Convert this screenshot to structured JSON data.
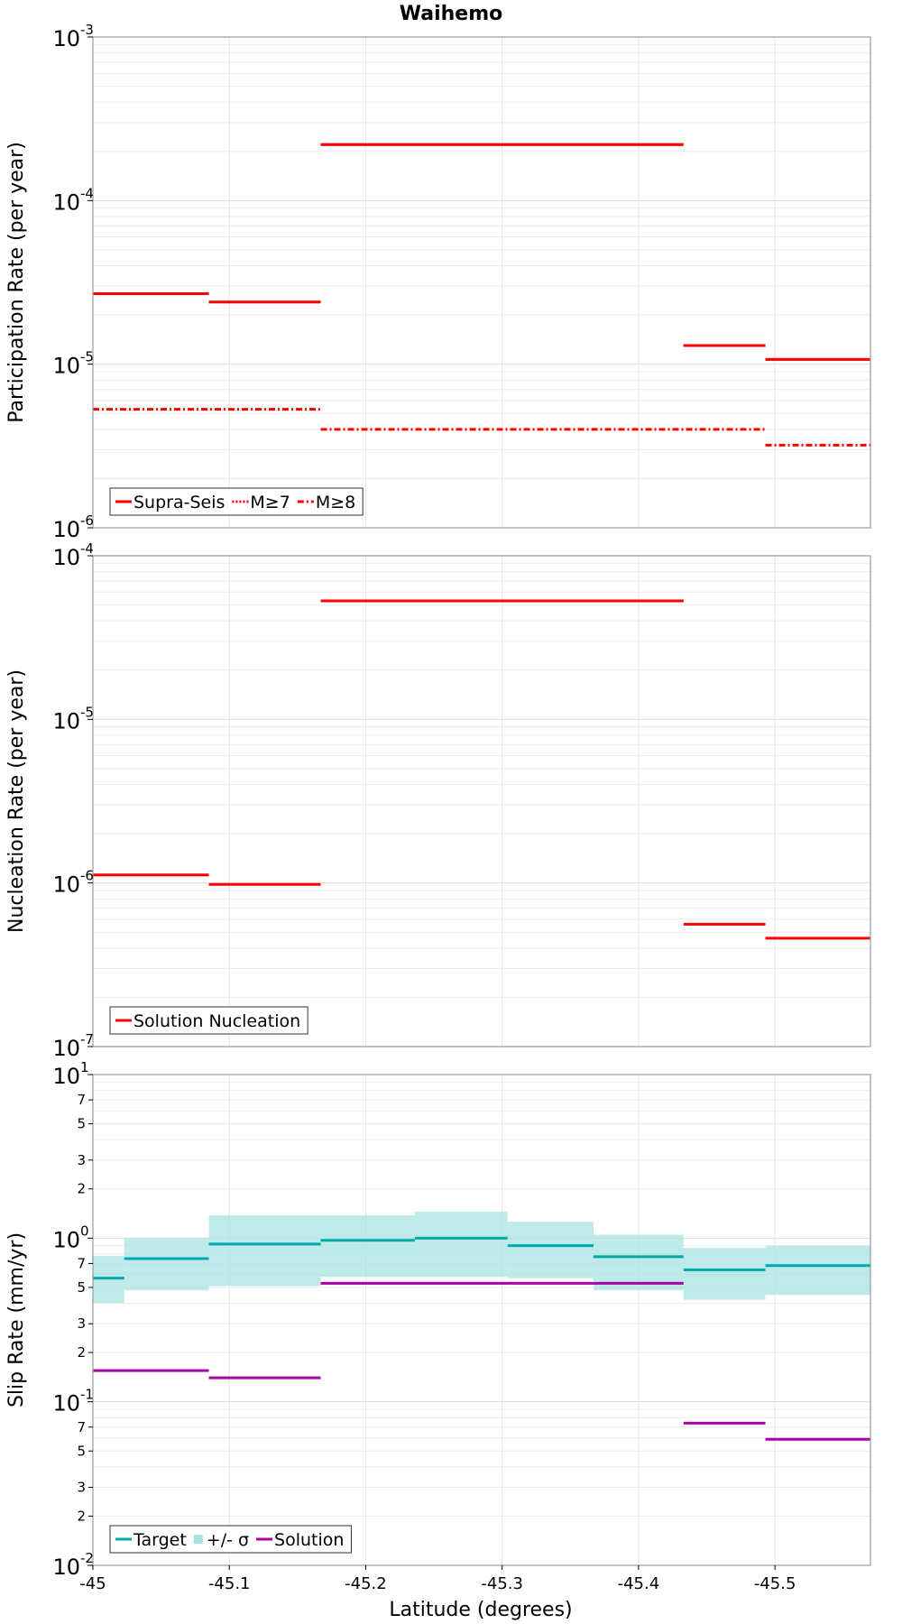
{
  "title": "Waihemo",
  "chart_data": [
    {
      "type": "line",
      "drawstyle": "steps",
      "ylabel": "Participation Rate (per year)",
      "xlabel": "",
      "yscale": "log",
      "ylim": [
        1e-06,
        0.001
      ],
      "xlim": [
        -45.0,
        -45.57
      ],
      "grid": true,
      "legend_position": "bottom-left",
      "series": [
        {
          "name": "Supra-Seis",
          "style": "solid",
          "color": "#ff0000",
          "segments": [
            [
              -45.0,
              -45.085,
              2.7e-05
            ],
            [
              -45.085,
              -45.167,
              2.4e-05
            ],
            [
              -45.167,
              -45.433,
              0.00022
            ],
            [
              -45.433,
              -45.493,
              1.3e-05
            ],
            [
              -45.493,
              -45.57,
              1.07e-05
            ]
          ]
        },
        {
          "name": "M≥7",
          "style": "dotted",
          "color": "#ff0000",
          "segments": [
            [
              -45.0,
              -45.085,
              2.7e-05
            ],
            [
              -45.085,
              -45.167,
              2.4e-05
            ],
            [
              -45.167,
              -45.433,
              0.00022
            ],
            [
              -45.433,
              -45.493,
              1.3e-05
            ],
            [
              -45.493,
              -45.57,
              1.07e-05
            ]
          ]
        },
        {
          "name": "M≥8",
          "style": "dashdot",
          "color": "#ff0000",
          "segments": [
            [
              -45.0,
              -45.167,
              5.3e-06
            ],
            [
              -45.167,
              -45.493,
              4e-06
            ],
            [
              -45.493,
              -45.57,
              3.2e-06
            ]
          ]
        }
      ]
    },
    {
      "type": "line",
      "drawstyle": "steps",
      "ylabel": "Nucleation Rate (per year)",
      "xlabel": "",
      "yscale": "log",
      "ylim": [
        1e-07,
        0.0001
      ],
      "xlim": [
        -45.0,
        -45.57
      ],
      "grid": true,
      "legend_position": "bottom-left",
      "series": [
        {
          "name": "Solution Nucleation",
          "style": "solid",
          "color": "#ff0000",
          "segments": [
            [
              -45.0,
              -45.085,
              1.12e-06
            ],
            [
              -45.085,
              -45.167,
              9.8e-07
            ],
            [
              -45.167,
              -45.433,
              5.3e-05
            ],
            [
              -45.433,
              -45.493,
              5.6e-07
            ],
            [
              -45.493,
              -45.57,
              4.6e-07
            ]
          ]
        }
      ]
    },
    {
      "type": "line",
      "drawstyle": "steps",
      "ylabel": "Slip Rate (mm/yr)",
      "xlabel": "Latitude (degrees)",
      "yscale": "log",
      "ylim": [
        0.01,
        10
      ],
      "xlim": [
        -45.0,
        -45.57
      ],
      "xticks": [
        "-45",
        "-45.1",
        "-45.2",
        "-45.3",
        "-45.4",
        "-45.5"
      ],
      "grid": true,
      "legend_position": "bottom-left",
      "series": [
        {
          "name": "Target",
          "style": "solid",
          "color": "#00aaaa",
          "segments": [
            [
              -45.0,
              -45.023,
              0.57
            ],
            [
              -45.023,
              -45.085,
              0.75
            ],
            [
              -45.085,
              -45.167,
              0.92
            ],
            [
              -45.167,
              -45.236,
              0.97
            ],
            [
              -45.236,
              -45.304,
              1.0
            ],
            [
              -45.304,
              -45.367,
              0.9
            ],
            [
              -45.367,
              -45.433,
              0.77
            ],
            [
              -45.433,
              -45.493,
              0.64
            ],
            [
              -45.493,
              -45.57,
              0.68
            ]
          ]
        },
        {
          "name": "+/- σ",
          "style": "band",
          "color": "#a8e3e3",
          "segments": [
            [
              -45.0,
              -45.023,
              0.4,
              0.78
            ],
            [
              -45.023,
              -45.085,
              0.48,
              1.0
            ],
            [
              -45.085,
              -45.167,
              0.51,
              1.38
            ],
            [
              -45.167,
              -45.236,
              0.58,
              1.38
            ],
            [
              -45.236,
              -45.304,
              0.58,
              1.45
            ],
            [
              -45.304,
              -45.367,
              0.57,
              1.26
            ],
            [
              -45.367,
              -45.433,
              0.48,
              1.05
            ],
            [
              -45.433,
              -45.493,
              0.42,
              0.87
            ],
            [
              -45.493,
              -45.57,
              0.45,
              0.9
            ]
          ]
        },
        {
          "name": "Solution",
          "style": "solid",
          "color": "#aa00aa",
          "segments": [
            [
              -45.0,
              -45.085,
              0.155
            ],
            [
              -45.085,
              -45.167,
              0.14
            ],
            [
              -45.167,
              -45.433,
              0.53
            ],
            [
              -45.433,
              -45.493,
              0.074
            ],
            [
              -45.493,
              -45.57,
              0.059
            ]
          ]
        }
      ]
    }
  ],
  "panels": [
    {
      "ylabel": "Participation Rate (per year)",
      "yticks": [
        {
          "base": "10",
          "exp": "-6"
        },
        {
          "base": "10",
          "exp": "-5"
        },
        {
          "base": "10",
          "exp": "-4"
        },
        {
          "base": "10",
          "exp": "-3"
        }
      ],
      "legend": [
        {
          "label": "Supra-Seis",
          "style": "solid",
          "color": "#ff0000"
        },
        {
          "label": "M≥7",
          "style": "dotted",
          "color": "#ff0000"
        },
        {
          "label": "M≥8",
          "style": "dashdot",
          "color": "#ff0000"
        }
      ]
    },
    {
      "ylabel": "Nucleation Rate (per year)",
      "yticks": [
        {
          "base": "10",
          "exp": "-7"
        },
        {
          "base": "10",
          "exp": "-6"
        },
        {
          "base": "10",
          "exp": "-5"
        },
        {
          "base": "10",
          "exp": "-4"
        }
      ],
      "legend": [
        {
          "label": "Solution Nucleation",
          "style": "solid",
          "color": "#ff0000"
        }
      ]
    },
    {
      "ylabel": "Slip Rate (mm/yr)",
      "yticks": [
        {
          "base": "10",
          "exp": "-2"
        },
        {
          "base": "10",
          "exp": "-1"
        },
        {
          "base": "10",
          "exp": "0"
        },
        {
          "base": "10",
          "exp": "1"
        }
      ],
      "minor_tick_labels": [
        "2",
        "3",
        "5",
        "7"
      ],
      "legend": [
        {
          "label": "Target",
          "style": "solid",
          "color": "#00aaaa"
        },
        {
          "label": "+/- σ",
          "style": "band",
          "color": "#a8e3e3"
        },
        {
          "label": "Solution",
          "style": "solid",
          "color": "#aa00aa"
        }
      ]
    }
  ]
}
